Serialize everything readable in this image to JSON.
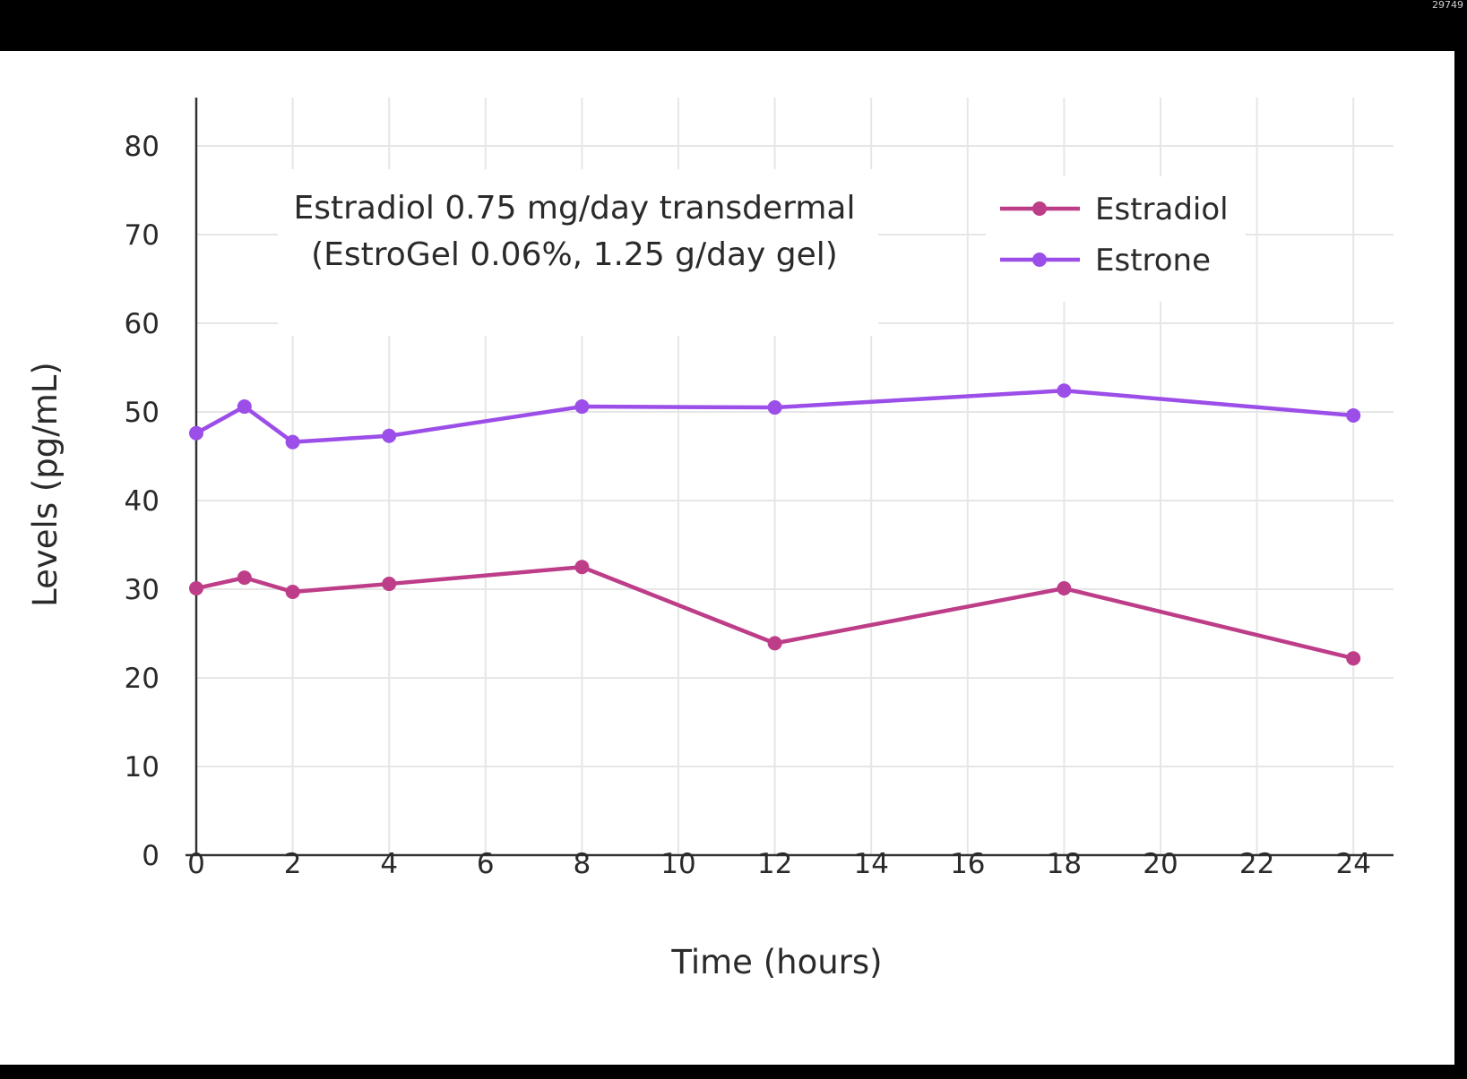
{
  "corner_text": "29749",
  "chart_data": {
    "type": "line",
    "annotation": [
      "Estradiol 0.75 mg/day transdermal",
      "(EstroGel 0.06%, 1.25 g/day gel)"
    ],
    "xlabel": "Time (hours)",
    "ylabel": "Levels (pg/mL)",
    "xlim": [
      0,
      25
    ],
    "ylim": [
      0,
      85
    ],
    "x_ticks": [
      0,
      2,
      4,
      6,
      8,
      10,
      12,
      14,
      16,
      18,
      20,
      22,
      24
    ],
    "y_ticks": [
      0,
      10,
      20,
      30,
      40,
      50,
      60,
      70,
      80
    ],
    "grid": true,
    "legend_position": "top-right",
    "series": [
      {
        "name": "Estradiol",
        "color": "#bd3d88",
        "x": [
          0,
          1,
          2,
          4,
          8,
          12,
          18,
          24
        ],
        "y": [
          30.1,
          31.3,
          29.7,
          30.6,
          32.5,
          23.9,
          30.1,
          22.2
        ]
      },
      {
        "name": "Estrone",
        "color": "#9b4ee8",
        "x": [
          0,
          1,
          2,
          4,
          8,
          12,
          18,
          24
        ],
        "y": [
          47.6,
          50.6,
          46.6,
          47.3,
          50.6,
          50.5,
          52.4,
          49.6
        ]
      }
    ]
  }
}
